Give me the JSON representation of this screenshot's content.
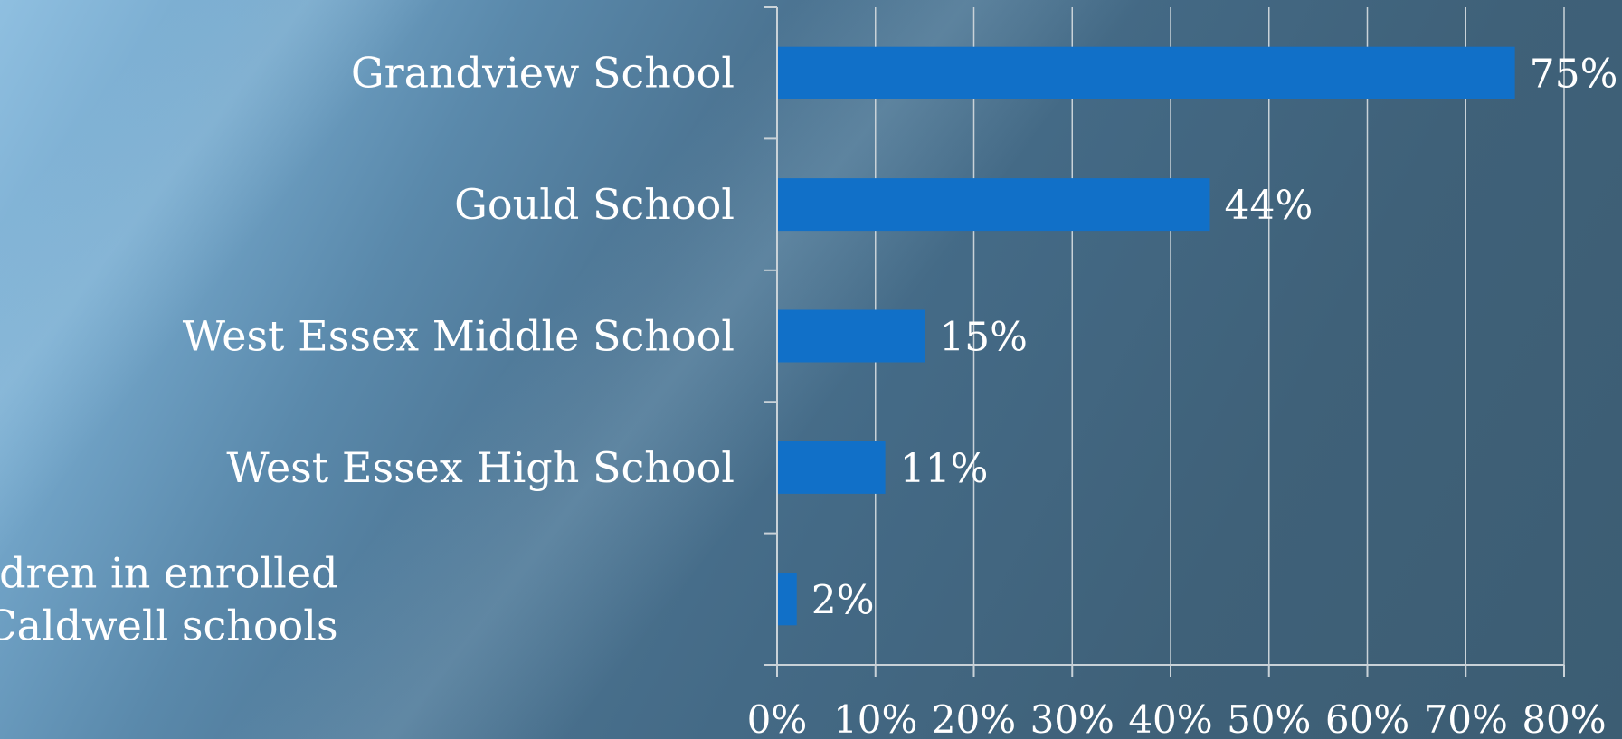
{
  "chart_data": {
    "type": "bar",
    "orientation": "horizontal",
    "categories": [
      "Grandview School",
      "Gould School",
      "West Essex Middle School",
      "West Essex High School",
      "I do not have any children in enrolled in North Caldwell schools"
    ],
    "category_lines": [
      [
        "Grandview School"
      ],
      [
        "Gould School"
      ],
      [
        "West Essex Middle School"
      ],
      [
        "West Essex High School"
      ],
      [
        "I do not have any children in enrolled",
        "in North Caldwell schools"
      ]
    ],
    "values": [
      75,
      44,
      15,
      11,
      2
    ],
    "value_labels": [
      "75%",
      "44%",
      "15%",
      "11%",
      "2%"
    ],
    "xlim": [
      0,
      80
    ],
    "x_ticks": [
      0,
      10,
      20,
      30,
      40,
      50,
      60,
      70,
      80
    ],
    "x_tick_labels": [
      "0%",
      "10%",
      "20%",
      "30%",
      "40%",
      "50%",
      "60%",
      "70%",
      "80%"
    ],
    "grid": true,
    "bar_color": "#1170c8",
    "title": "",
    "xlabel": "",
    "ylabel": ""
  }
}
